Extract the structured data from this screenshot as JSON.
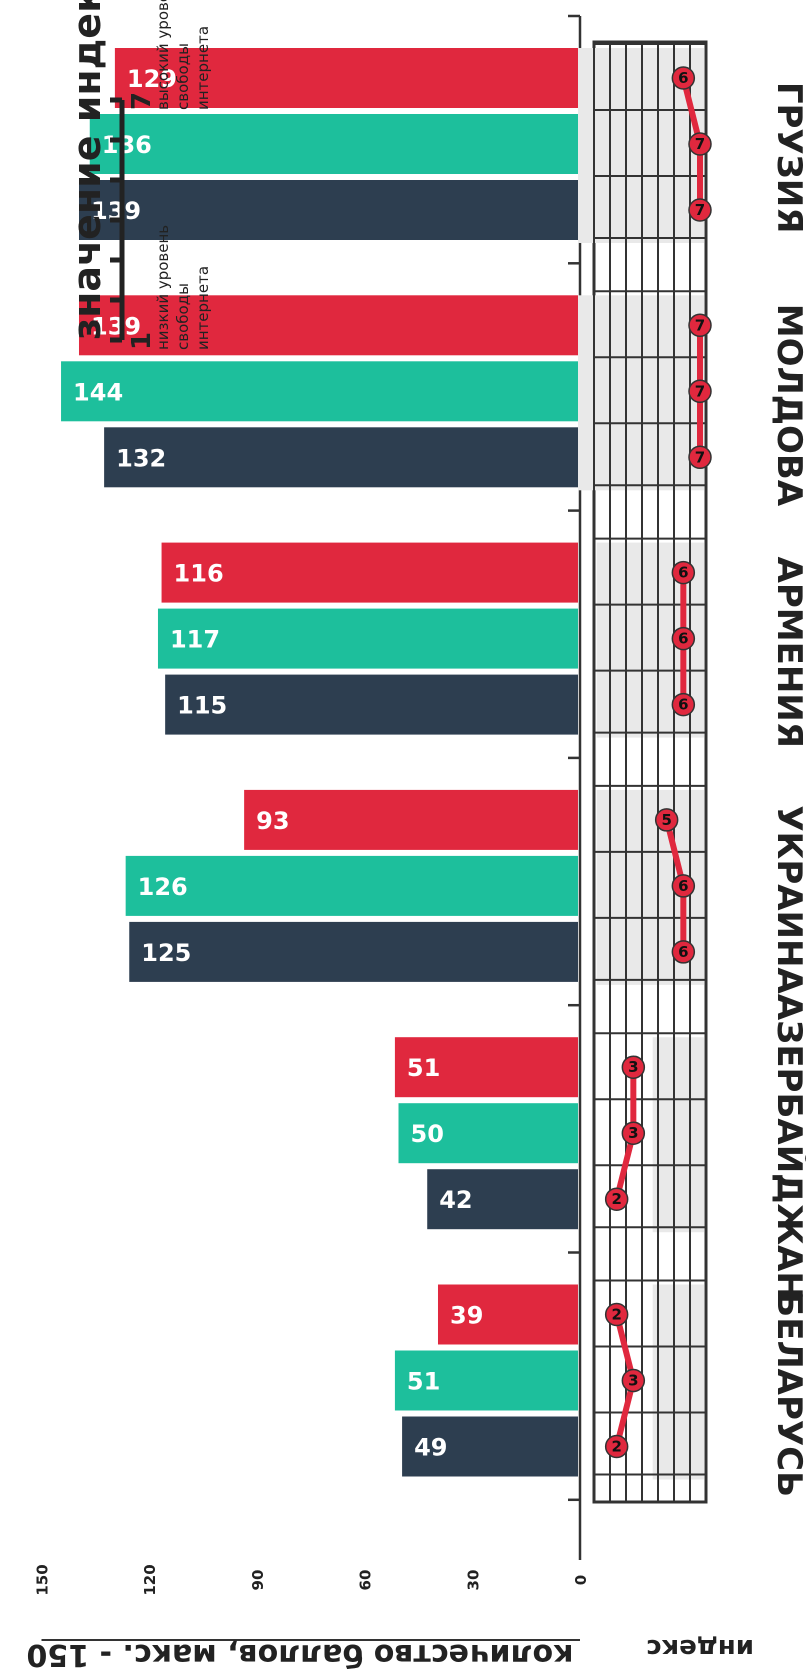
{
  "chart_data": {
    "type": "bar",
    "ylabel": "количество баллов, макс. - 150",
    "index_label": "индекс",
    "yticks": [
      0,
      30,
      60,
      90,
      120,
      150
    ],
    "ylim": [
      0,
      150
    ],
    "categories": [
      "ГРУЗИЯ",
      "МОЛДОВА",
      "АРМЕНИЯ",
      "УКРАИНА",
      "АЗЕРБАЙДЖАН",
      "БЕЛАРУСЬ"
    ],
    "series": [
      {
        "color": "#e0283e",
        "values": [
          129,
          139,
          116,
          93,
          51,
          39
        ]
      },
      {
        "color": "#1dbf9c",
        "values": [
          136,
          144,
          117,
          126,
          50,
          51
        ]
      },
      {
        "color": "#2d3e50",
        "values": [
          139,
          132,
          115,
          125,
          42,
          49
        ]
      }
    ],
    "index_values": [
      [
        6,
        7,
        7
      ],
      [
        7,
        7,
        7
      ],
      [
        6,
        6,
        6
      ],
      [
        5,
        6,
        6
      ],
      [
        3,
        3,
        2
      ],
      [
        2,
        3,
        2
      ]
    ],
    "index_range": [
      1,
      7
    ],
    "index_color": "#e0283e",
    "legend": {
      "title": "значение индекса",
      "low_value": "1",
      "low_text": [
        "низкий уровень",
        "свободы",
        "интернета"
      ],
      "high_value": "7",
      "high_text": [
        "высокий уровень",
        "свободы",
        "интернета"
      ]
    }
  }
}
